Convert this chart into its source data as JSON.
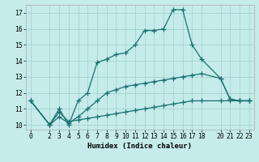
{
  "xlabel": "Humidex (Indice chaleur)",
  "bg_color": "#c5ecea",
  "grid_color": "#9ecece",
  "line_color": "#1a7070",
  "xlim": [
    -0.5,
    23.5
  ],
  "ylim": [
    9.7,
    17.5
  ],
  "yticks": [
    10,
    11,
    12,
    13,
    14,
    15,
    16,
    17
  ],
  "xticks": [
    0,
    2,
    3,
    4,
    5,
    6,
    7,
    8,
    9,
    10,
    11,
    12,
    13,
    14,
    15,
    16,
    17,
    18,
    20,
    21,
    22,
    23
  ],
  "xtick_labels": [
    "0",
    "2",
    "3",
    "4",
    "5",
    "6",
    "7",
    "8",
    "9",
    "10",
    "11",
    "12",
    "13",
    "14",
    "15",
    "16",
    "17",
    "18",
    "20",
    "21",
    "22",
    "23"
  ],
  "s1_x": [
    0,
    2,
    3,
    4,
    5,
    6,
    7,
    8,
    9,
    10,
    11,
    12,
    13,
    14,
    15,
    16,
    17,
    18,
    20,
    21,
    22,
    23
  ],
  "s1_y": [
    11.5,
    10.0,
    11.0,
    10.0,
    11.5,
    12.0,
    13.9,
    14.1,
    14.4,
    14.5,
    15.0,
    15.9,
    15.9,
    16.0,
    17.2,
    17.2,
    15.0,
    14.1,
    12.9,
    11.6,
    11.5,
    11.5
  ],
  "s2_x": [
    0,
    2,
    3,
    4,
    5,
    6,
    7,
    8,
    9,
    10,
    11,
    12,
    13,
    14,
    15,
    16,
    17,
    18,
    20,
    21,
    22,
    23
  ],
  "s2_y": [
    11.5,
    10.0,
    10.8,
    10.2,
    10.3,
    10.4,
    10.5,
    10.6,
    10.7,
    10.8,
    10.9,
    11.0,
    11.1,
    11.2,
    11.3,
    11.4,
    11.5,
    11.5,
    11.5,
    11.5,
    11.5,
    11.5
  ],
  "s3_x": [
    0,
    2,
    3,
    4,
    5,
    6,
    7,
    8,
    9,
    10,
    11,
    12,
    13,
    14,
    15,
    16,
    17,
    18,
    20,
    21,
    22,
    23
  ],
  "s3_y": [
    11.5,
    10.0,
    10.5,
    10.1,
    10.5,
    11.0,
    11.5,
    12.0,
    12.2,
    12.4,
    12.5,
    12.6,
    12.7,
    12.8,
    12.9,
    13.0,
    13.1,
    13.2,
    12.9,
    11.6,
    11.5,
    11.5
  ],
  "marker": "+",
  "markersize": 4,
  "markeredgewidth": 0.9,
  "linewidth": 0.9,
  "xlabel_fontsize": 6.5,
  "tick_fontsize": 5.8
}
